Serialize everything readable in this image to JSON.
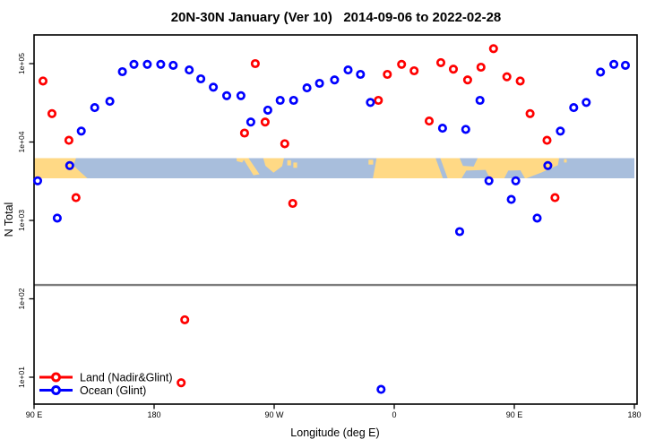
{
  "title": "20N-30N January (Ver 10)   2014-09-06 to 2022-02-28",
  "axes": {
    "x_title": "Longitude (deg E)",
    "y_title": "N Total",
    "x_ticks": [
      {
        "d": 0,
        "label": "90 E"
      },
      {
        "d": 90,
        "label": "180"
      },
      {
        "d": 180,
        "label": "90 W"
      },
      {
        "d": 270,
        "label": "0"
      },
      {
        "d": 360,
        "label": "90 E"
      },
      {
        "d": 450,
        "label": "180"
      }
    ],
    "y_ticks": [
      {
        "v": 100000,
        "label": "1e+05"
      },
      {
        "v": 10000,
        "label": "1e+04"
      },
      {
        "v": 1000,
        "label": "1e+03"
      },
      {
        "v": 100,
        "label": "1e+02"
      },
      {
        "v": 10,
        "label": "1e+01"
      }
    ]
  },
  "legend": {
    "items": [
      {
        "label": "Land (Nadir&Glint)",
        "color": "#ff0000"
      },
      {
        "label": "Ocean (Glint)",
        "color": "#0000ff"
      }
    ]
  },
  "colors": {
    "land_marker": "#ff0000",
    "ocean_marker": "#0000ff",
    "map_land": "#ffd985",
    "map_ocean": "#a8bedc",
    "reference_line": "#7d7d7d",
    "frame": "#000000"
  },
  "chart_data": {
    "type": "scatter",
    "title": "20N-30N January (Ver 10)   2014-09-06 to 2022-02-28",
    "xlabel": "Longitude (deg E)",
    "ylabel": "N Total",
    "x_axis": {
      "unit": "degrees east of 90E (axis wraps 90E→180→90W→0→90E→180)",
      "range": [
        0,
        450
      ],
      "tick_positions": [
        0,
        90,
        180,
        270,
        360,
        450
      ],
      "tick_labels": [
        "90 E",
        "180",
        "90 W",
        "0",
        "90 E",
        "180"
      ]
    },
    "y_axis": {
      "scale": "log10",
      "range": [
        6,
        200000
      ],
      "tick_labels": [
        "1e+01",
        "1e+02",
        "1e+03",
        "1e+04",
        "1e+05"
      ]
    },
    "reference_line": {
      "value": 150
    },
    "map_strip": {
      "description": "20N-30N land(sand)/ocean(lightblue) geography band drawn across the plot near 1e+04",
      "value_top": 7800,
      "value_bottom": 4300,
      "land_polys": [
        [
          [
            0,
            0
          ],
          [
            31.5,
            0
          ],
          [
            29.5,
            0.35
          ],
          [
            33.5,
            0.62
          ],
          [
            40,
            1
          ],
          [
            0,
            1
          ]
        ],
        [
          [
            151.8,
            0
          ],
          [
            158,
            0
          ],
          [
            156,
            0.22
          ],
          [
            152,
            0.15
          ]
        ],
        [
          [
            156.5,
            0
          ],
          [
            160.8,
            0
          ],
          [
            169,
            0.8
          ],
          [
            164.5,
            0.85
          ]
        ],
        [
          [
            171.8,
            0
          ],
          [
            187.3,
            0
          ],
          [
            186,
            0.4
          ],
          [
            179.5,
            0.72
          ],
          [
            173.5,
            0.38
          ]
        ],
        [
          [
            189.8,
            0.1
          ],
          [
            192.6,
            0.1
          ],
          [
            192.6,
            0.36
          ],
          [
            189.8,
            0.36
          ]
        ],
        [
          [
            194.4,
            0.22
          ],
          [
            197.2,
            0.22
          ],
          [
            197.2,
            0.48
          ],
          [
            194.4,
            0.48
          ]
        ],
        [
          [
            250.7,
            0.08
          ],
          [
            254.2,
            0.08
          ],
          [
            254.2,
            0.32
          ],
          [
            250.7,
            0.32
          ]
        ],
        [
          [
            256.8,
            0
          ],
          [
            393.6,
            0
          ],
          [
            391,
            1
          ],
          [
            254,
            1
          ]
        ],
        [
          [
            397.3,
            0.05
          ],
          [
            399.3,
            0.05
          ],
          [
            399.3,
            0.22
          ],
          [
            397.3,
            0.22
          ]
        ]
      ],
      "ocean_notch_polys": [
        [
          [
            301,
            0
          ],
          [
            304.5,
            0
          ],
          [
            310,
            1
          ],
          [
            306.5,
            1
          ]
        ],
        [
          [
            319,
            0
          ],
          [
            332.5,
            0
          ],
          [
            329.5,
            0.42
          ],
          [
            321.5,
            0.38
          ]
        ],
        [
          [
            320.5,
            1
          ],
          [
            341.5,
            1
          ],
          [
            338.5,
            0.58
          ],
          [
            324,
            0.62
          ]
        ],
        [
          [
            352.5,
            1
          ],
          [
            368,
            1
          ],
          [
            364.5,
            0.6
          ],
          [
            355.5,
            0.62
          ]
        ],
        [
          [
            369,
            1
          ],
          [
            391,
            1
          ],
          [
            393.6,
            0.32
          ],
          [
            380,
            0.72
          ]
        ]
      ]
    },
    "series": [
      {
        "name": "Land (Nadir&Glint)",
        "color": "#ff0000",
        "points": [
          {
            "d": 6.7,
            "v": 60000
          },
          {
            "d": 13.4,
            "v": 23000
          },
          {
            "d": 26.1,
            "v": 10500
          },
          {
            "d": 31.4,
            "v": 1950
          },
          {
            "d": 110.3,
            "v": 8.5
          },
          {
            "d": 113.0,
            "v": 54
          },
          {
            "d": 157.8,
            "v": 13000
          },
          {
            "d": 165.8,
            "v": 100000
          },
          {
            "d": 173.2,
            "v": 18000
          },
          {
            "d": 187.9,
            "v": 9500
          },
          {
            "d": 193.9,
            "v": 1650
          },
          {
            "d": 258.1,
            "v": 34000
          },
          {
            "d": 264.8,
            "v": 73000
          },
          {
            "d": 275.5,
            "v": 98000
          },
          {
            "d": 284.9,
            "v": 81000
          },
          {
            "d": 296.2,
            "v": 18500
          },
          {
            "d": 304.9,
            "v": 103000
          },
          {
            "d": 314.3,
            "v": 85000
          },
          {
            "d": 325.0,
            "v": 62000
          },
          {
            "d": 335.0,
            "v": 90000
          },
          {
            "d": 344.4,
            "v": 155000
          },
          {
            "d": 354.4,
            "v": 68000
          },
          {
            "d": 364.4,
            "v": 60000
          },
          {
            "d": 371.8,
            "v": 23000
          },
          {
            "d": 384.5,
            "v": 10500
          },
          {
            "d": 390.5,
            "v": 1950
          }
        ]
      },
      {
        "name": "Ocean (Glint)",
        "color": "#0000ff",
        "points": [
          {
            "d": 2.7,
            "v": 3200
          },
          {
            "d": 17.4,
            "v": 1070
          },
          {
            "d": 26.7,
            "v": 5000
          },
          {
            "d": 35.4,
            "v": 13800
          },
          {
            "d": 45.5,
            "v": 27500
          },
          {
            "d": 56.8,
            "v": 33000
          },
          {
            "d": 66.2,
            "v": 79000
          },
          {
            "d": 74.9,
            "v": 98000
          },
          {
            "d": 84.9,
            "v": 98000
          },
          {
            "d": 95.0,
            "v": 98000
          },
          {
            "d": 104.3,
            "v": 95000
          },
          {
            "d": 116.3,
            "v": 83000
          },
          {
            "d": 125.0,
            "v": 64000
          },
          {
            "d": 134.4,
            "v": 50000
          },
          {
            "d": 144.4,
            "v": 39000
          },
          {
            "d": 155.1,
            "v": 39000
          },
          {
            "d": 162.5,
            "v": 18000
          },
          {
            "d": 175.2,
            "v": 25500
          },
          {
            "d": 184.5,
            "v": 34000
          },
          {
            "d": 194.6,
            "v": 34000
          },
          {
            "d": 204.6,
            "v": 49000
          },
          {
            "d": 214.0,
            "v": 56000
          },
          {
            "d": 225.3,
            "v": 62000
          },
          {
            "d": 235.4,
            "v": 83000
          },
          {
            "d": 244.7,
            "v": 73000
          },
          {
            "d": 252.1,
            "v": 32000
          },
          {
            "d": 260.1,
            "v": 7
          },
          {
            "d": 306.2,
            "v": 15000
          },
          {
            "d": 319.0,
            "v": 720
          },
          {
            "d": 323.6,
            "v": 14500
          },
          {
            "d": 334.3,
            "v": 34000
          },
          {
            "d": 341.0,
            "v": 3200
          },
          {
            "d": 357.7,
            "v": 1850
          },
          {
            "d": 361.1,
            "v": 3200
          },
          {
            "d": 377.1,
            "v": 1070
          },
          {
            "d": 385.1,
            "v": 5000
          },
          {
            "d": 394.5,
            "v": 13800
          },
          {
            "d": 404.5,
            "v": 27500
          },
          {
            "d": 413.9,
            "v": 32000
          },
          {
            "d": 424.6,
            "v": 78000
          },
          {
            "d": 434.6,
            "v": 98000
          },
          {
            "d": 443.3,
            "v": 95000
          }
        ]
      }
    ]
  }
}
